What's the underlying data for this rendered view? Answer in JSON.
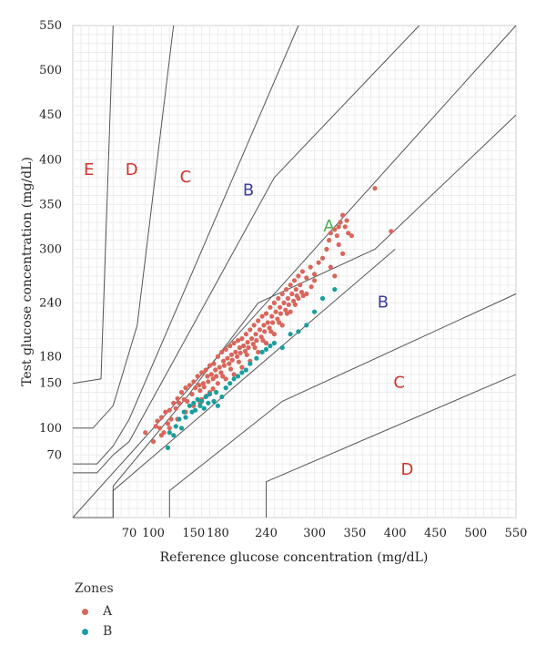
{
  "chart_data": {
    "type": "scatter",
    "title": "",
    "xlabel": "Reference glucose concentration (mg/dL)",
    "ylabel": "Test glucose concentration (mg/dL)",
    "xlim": [
      0,
      550
    ],
    "ylim": [
      0,
      550
    ],
    "xticks": [
      70,
      100,
      150,
      180,
      240,
      300,
      350,
      400,
      450,
      500,
      550
    ],
    "xtick_labels": [
      "70",
      "100",
      "150",
      "180",
      "240",
      "300",
      "350",
      "400",
      "450",
      "500",
      "550"
    ],
    "yticks": [
      70,
      100,
      150,
      180,
      240,
      300,
      350,
      400,
      450,
      500,
      550
    ],
    "ytick_labels": [
      "70",
      "100",
      "150",
      "180",
      "240",
      "300",
      "350",
      "400",
      "450",
      "500",
      "550"
    ],
    "grid": true,
    "legend": {
      "title": "Zones",
      "placement": "bottom-left"
    },
    "zone_labels": [
      {
        "text": "A",
        "x": 318,
        "y": 320,
        "color": "#4caf50"
      },
      {
        "text": "B",
        "x": 218,
        "y": 360,
        "color": "#3f3f9f"
      },
      {
        "text": "B",
        "x": 385,
        "y": 235,
        "color": "#3f3f9f"
      },
      {
        "text": "C",
        "x": 140,
        "y": 375,
        "color": "#d0342c"
      },
      {
        "text": "C",
        "x": 405,
        "y": 145,
        "color": "#d0342c"
      },
      {
        "text": "D",
        "x": 73,
        "y": 383,
        "color": "#d0342c"
      },
      {
        "text": "D",
        "x": 415,
        "y": 48,
        "color": "#d0342c"
      },
      {
        "text": "E",
        "x": 20,
        "y": 383,
        "color": "#d0342c"
      }
    ],
    "zone_boundaries": [
      [
        [
          0,
          0
        ],
        [
          550,
          550
        ]
      ],
      [
        [
          0,
          150
        ],
        [
          35,
          155
        ],
        [
          50,
          550
        ]
      ],
      [
        [
          0,
          100
        ],
        [
          25,
          100
        ],
        [
          50,
          125
        ],
        [
          80,
          215
        ],
        [
          125,
          550
        ]
      ],
      [
        [
          0,
          60
        ],
        [
          30,
          60
        ],
        [
          50,
          80
        ],
        [
          70,
          110
        ],
        [
          280,
          550
        ]
      ],
      [
        [
          0,
          50
        ],
        [
          30,
          50
        ],
        [
          50,
          70
        ],
        [
          70,
          85
        ],
        [
          250,
          380
        ],
        [
          430,
          550
        ]
      ],
      [
        [
          0,
          0
        ],
        [
          50,
          0
        ],
        [
          50,
          35
        ],
        [
          140,
          133
        ],
        [
          230,
          240
        ],
        [
          375,
          300
        ],
        [
          550,
          450
        ]
      ],
      [
        [
          50,
          0
        ],
        [
          50,
          30
        ],
        [
          400,
          300
        ]
      ],
      [
        [
          120,
          0
        ],
        [
          120,
          30
        ],
        [
          260,
          130
        ],
        [
          550,
          250
        ]
      ],
      [
        [
          240,
          0
        ],
        [
          240,
          40
        ],
        [
          550,
          160
        ]
      ]
    ],
    "series": [
      {
        "name": "A",
        "color": "#d9665b",
        "points": [
          [
            90,
            95
          ],
          [
            100,
            85
          ],
          [
            103,
            102
          ],
          [
            105,
            108
          ],
          [
            108,
            100
          ],
          [
            110,
            112
          ],
          [
            113,
            95
          ],
          [
            115,
            118
          ],
          [
            118,
            105
          ],
          [
            120,
            120
          ],
          [
            122,
            110
          ],
          [
            125,
            128
          ],
          [
            128,
            122
          ],
          [
            130,
            133
          ],
          [
            132,
            128
          ],
          [
            135,
            140
          ],
          [
            138,
            132
          ],
          [
            140,
            145
          ],
          [
            142,
            130
          ],
          [
            145,
            148
          ],
          [
            148,
            138
          ],
          [
            150,
            152
          ],
          [
            152,
            145
          ],
          [
            155,
            158
          ],
          [
            157,
            148
          ],
          [
            158,
            142
          ],
          [
            160,
            162
          ],
          [
            162,
            150
          ],
          [
            163,
            146
          ],
          [
            165,
            165
          ],
          [
            167,
            158
          ],
          [
            168,
            152
          ],
          [
            170,
            170
          ],
          [
            172,
            160
          ],
          [
            174,
            155
          ],
          [
            175,
            172
          ],
          [
            177,
            165
          ],
          [
            178,
            158
          ],
          [
            180,
            180
          ],
          [
            182,
            168
          ],
          [
            184,
            162
          ],
          [
            185,
            185
          ],
          [
            187,
            175
          ],
          [
            188,
            170
          ],
          [
            190,
            188
          ],
          [
            192,
            178
          ],
          [
            194,
            172
          ],
          [
            195,
            192
          ],
          [
            197,
            182
          ],
          [
            198,
            176
          ],
          [
            200,
            195
          ],
          [
            202,
            185
          ],
          [
            204,
            180
          ],
          [
            205,
            198
          ],
          [
            207,
            190
          ],
          [
            208,
            184
          ],
          [
            210,
            200
          ],
          [
            212,
            192
          ],
          [
            214,
            186
          ],
          [
            215,
            205
          ],
          [
            217,
            196
          ],
          [
            218,
            190
          ],
          [
            220,
            210
          ],
          [
            222,
            200
          ],
          [
            224,
            194
          ],
          [
            225,
            215
          ],
          [
            227,
            205
          ],
          [
            228,
            198
          ],
          [
            230,
            220
          ],
          [
            232,
            210
          ],
          [
            234,
            202
          ],
          [
            235,
            225
          ],
          [
            237,
            215
          ],
          [
            238,
            208
          ],
          [
            240,
            228
          ],
          [
            242,
            218
          ],
          [
            244,
            212
          ],
          [
            245,
            235
          ],
          [
            247,
            225
          ],
          [
            248,
            218
          ],
          [
            250,
            240
          ],
          [
            252,
            230
          ],
          [
            254,
            222
          ],
          [
            255,
            245
          ],
          [
            257,
            235
          ],
          [
            258,
            228
          ],
          [
            260,
            250
          ],
          [
            262,
            240
          ],
          [
            264,
            232
          ],
          [
            265,
            255
          ],
          [
            267,
            245
          ],
          [
            268,
            238
          ],
          [
            270,
            260
          ],
          [
            272,
            250
          ],
          [
            274,
            242
          ],
          [
            275,
            265
          ],
          [
            277,
            255
          ],
          [
            278,
            248
          ],
          [
            280,
            270
          ],
          [
            282,
            260
          ],
          [
            284,
            252
          ],
          [
            285,
            275
          ],
          [
            290,
            268
          ],
          [
            295,
            280
          ],
          [
            300,
            272
          ],
          [
            305,
            285
          ],
          [
            310,
            290
          ],
          [
            315,
            300
          ],
          [
            318,
            310
          ],
          [
            320,
            318
          ],
          [
            325,
            322
          ],
          [
            328,
            315
          ],
          [
            330,
            325
          ],
          [
            332,
            330
          ],
          [
            335,
            338
          ],
          [
            338,
            325
          ],
          [
            340,
            332
          ],
          [
            342,
            318
          ],
          [
            330,
            305
          ],
          [
            335,
            295
          ],
          [
            320,
            280
          ],
          [
            325,
            270
          ],
          [
            300,
            265
          ],
          [
            290,
            250
          ],
          [
            280,
            245
          ],
          [
            270,
            230
          ],
          [
            260,
            215
          ],
          [
            250,
            205
          ],
          [
            240,
            195
          ],
          [
            230,
            185
          ],
          [
            220,
            175
          ],
          [
            210,
            168
          ],
          [
            200,
            160
          ],
          [
            190,
            155
          ],
          [
            180,
            150
          ],
          [
            170,
            140
          ],
          [
            160,
            132
          ],
          [
            150,
            125
          ],
          [
            140,
            118
          ],
          [
            130,
            110
          ],
          [
            120,
            100
          ],
          [
            110,
            92
          ],
          [
            395,
            320
          ],
          [
            375,
            368
          ],
          [
            346,
            315
          ],
          [
            158,
            128
          ],
          [
            166,
            136
          ],
          [
            174,
            144
          ],
          [
            186,
            158
          ],
          [
            196,
            166
          ],
          [
            206,
            174
          ],
          [
            216,
            182
          ],
          [
            226,
            190
          ],
          [
            236,
            198
          ],
          [
            246,
            208
          ],
          [
            256,
            218
          ],
          [
            266,
            228
          ],
          [
            276,
            238
          ],
          [
            286,
            248
          ],
          [
            296,
            258
          ]
        ]
      },
      {
        "name": "B",
        "color": "#1a9e9e",
        "points": [
          [
            118,
            78
          ],
          [
            120,
            95
          ],
          [
            125,
            92
          ],
          [
            128,
            102
          ],
          [
            132,
            110
          ],
          [
            135,
            100
          ],
          [
            138,
            118
          ],
          [
            140,
            112
          ],
          [
            145,
            125
          ],
          [
            148,
            118
          ],
          [
            150,
            128
          ],
          [
            152,
            120
          ],
          [
            155,
            132
          ],
          [
            158,
            125
          ],
          [
            160,
            130
          ],
          [
            163,
            122
          ],
          [
            165,
            135
          ],
          [
            168,
            128
          ],
          [
            170,
            138
          ],
          [
            175,
            130
          ],
          [
            178,
            140
          ],
          [
            180,
            125
          ],
          [
            185,
            135
          ],
          [
            190,
            145
          ],
          [
            195,
            150
          ],
          [
            200,
            155
          ],
          [
            205,
            158
          ],
          [
            210,
            162
          ],
          [
            215,
            165
          ],
          [
            220,
            172
          ],
          [
            228,
            178
          ],
          [
            235,
            185
          ],
          [
            240,
            188
          ],
          [
            245,
            192
          ],
          [
            250,
            195
          ],
          [
            260,
            190
          ],
          [
            270,
            205
          ],
          [
            280,
            208
          ],
          [
            290,
            215
          ],
          [
            300,
            230
          ],
          [
            310,
            245
          ],
          [
            325,
            255
          ]
        ]
      }
    ]
  }
}
